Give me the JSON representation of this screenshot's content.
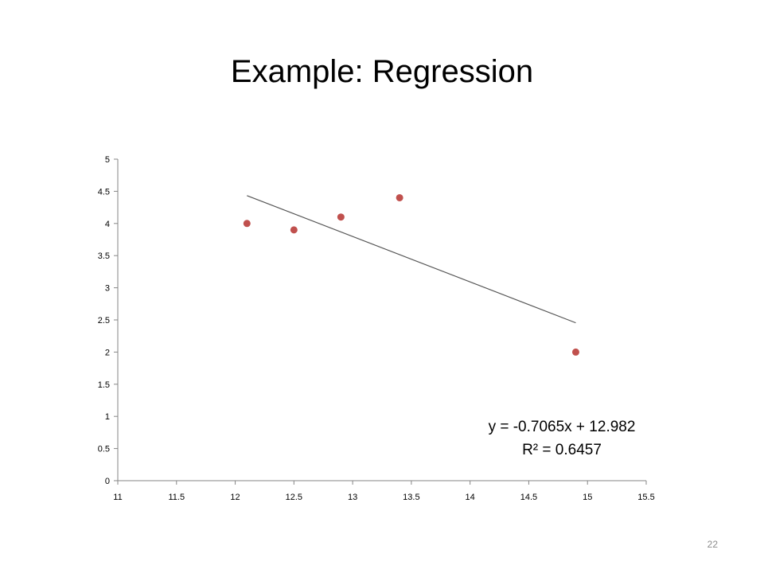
{
  "slide": {
    "title": "Example: Regression",
    "page_number": "22"
  },
  "chart_data": {
    "type": "scatter",
    "title": "",
    "xlabel": "",
    "ylabel": "",
    "xlim": [
      11,
      15.5
    ],
    "ylim": [
      0,
      5
    ],
    "x_ticks": [
      "11",
      "11.5",
      "12",
      "12.5",
      "13",
      "13.5",
      "14",
      "14.5",
      "15",
      "15.5"
    ],
    "y_ticks": [
      "0",
      "0.5",
      "1",
      "1.5",
      "2",
      "2.5",
      "3",
      "3.5",
      "4",
      "4.5",
      "5"
    ],
    "x_tick_values": [
      11,
      11.5,
      12,
      12.5,
      13,
      13.5,
      14,
      14.5,
      15,
      15.5
    ],
    "y_tick_values": [
      0,
      0.5,
      1,
      1.5,
      2,
      2.5,
      3,
      3.5,
      4,
      4.5,
      5
    ],
    "grid": false,
    "series": [
      {
        "points": [
          {
            "x": 12.1,
            "y": 4.0
          },
          {
            "x": 12.5,
            "y": 3.9
          },
          {
            "x": 12.9,
            "y": 4.1
          },
          {
            "x": 13.4,
            "y": 4.4
          },
          {
            "x": 14.9,
            "y": 2.0
          }
        ],
        "color": "#c0504d"
      }
    ],
    "trendline": {
      "slope": -0.7065,
      "intercept": 12.982,
      "x_range": [
        12.1,
        14.9
      ],
      "color": "#555555"
    },
    "annotations": {
      "equation": "y = -0.7065x + 12.982",
      "r_squared": "R² = 0.6457"
    }
  }
}
